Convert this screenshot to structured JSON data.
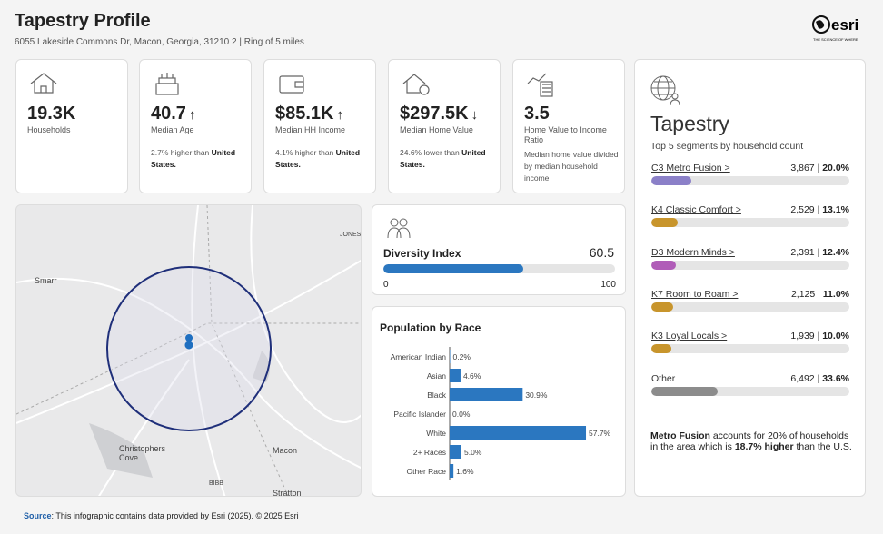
{
  "header": {
    "title": "Tapestry Profile",
    "subtitle": "6055 Lakeside Commons Dr, Macon, Georgia, 31210 2 | Ring of 5 miles",
    "logo": "esri",
    "logo_tagline": "THE SCIENCE OF WHERE"
  },
  "cards": [
    {
      "value": "19.3K",
      "label": "Households"
    },
    {
      "value": "40.7",
      "trend": "↑",
      "label": "Median Age",
      "note": "2.7% higher than",
      "note_bold": "United States."
    },
    {
      "value": "$85.1K",
      "trend": "↑",
      "label": "Median HH Income",
      "note": "4.1% higher than",
      "note_bold": "United States."
    },
    {
      "value": "$297.5K",
      "trend": "↓",
      "label": "Median Home Value",
      "note": "24.6% lower than",
      "note_bold": "United States."
    },
    {
      "value": "3.5",
      "label": "Home Value to Income Ratio",
      "note": "Median home value divided by median household income"
    }
  ],
  "map": {
    "labels": [
      "Smarr",
      "JONES",
      "Christophers Cove",
      "Macon",
      "BIBB",
      "Stratton"
    ]
  },
  "diversity": {
    "title": "Diversity Index",
    "value": 60.5,
    "min": 0,
    "max": 100,
    "color": "#2b77c0"
  },
  "race": {
    "title": "Population by Race",
    "categories": [
      "American Indian",
      "Asian",
      "Black",
      "Pacific Islander",
      "White",
      "2+ Races",
      "Other Race"
    ],
    "values": [
      0.2,
      4.6,
      30.9,
      0.0,
      57.7,
      5.0,
      1.6
    ],
    "value_labels": [
      "0.2%",
      "4.6%",
      "30.9%",
      "0.0%",
      "57.7%",
      "5.0%",
      "1.6%"
    ],
    "xlim": [
      0,
      70
    ],
    "color": "#2b77c0"
  },
  "tapestry": {
    "title": "Tapestry",
    "subtitle": "Top 5 segments by household count",
    "xlim": [
      0,
      100
    ],
    "segments": [
      {
        "name": "C3 Metro Fusion >",
        "count": "3,867",
        "percent": 20.0,
        "percent_label": "20.0%",
        "color": "#8b80c8"
      },
      {
        "name": "K4 Classic Comfort >",
        "count": "2,529",
        "percent": 13.1,
        "percent_label": "13.1%",
        "color": "#c8952c"
      },
      {
        "name": "D3 Modern Minds >",
        "count": "2,391",
        "percent": 12.4,
        "percent_label": "12.4%",
        "color": "#b05db8"
      },
      {
        "name": "K7 Room to Roam >",
        "count": "2,125",
        "percent": 11.0,
        "percent_label": "11.0%",
        "color": "#c8952c"
      },
      {
        "name": "K3 Loyal Locals >",
        "count": "1,939",
        "percent": 10.0,
        "percent_label": "10.0%",
        "color": "#c8952c"
      },
      {
        "name": "Other",
        "count": "6,492",
        "percent": 33.6,
        "percent_label": "33.6%",
        "color": "#8c8c8c"
      }
    ],
    "summary": {
      "bold1": "Metro Fusion",
      "text1": " accounts for 20% of households in the area which is ",
      "bold2": "18.7% higher",
      "text2": " than the U.S."
    }
  },
  "footer": {
    "source": "Source",
    "text": ": This infographic contains data provided by Esri (2025). © 2025 Esri"
  }
}
